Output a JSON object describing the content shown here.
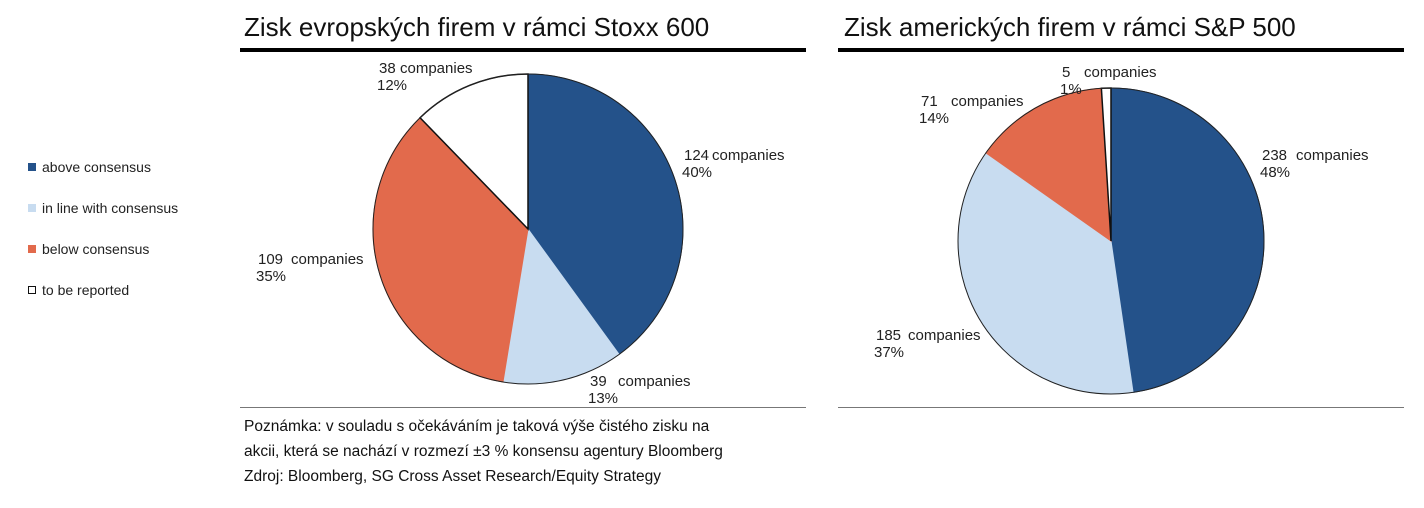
{
  "colors": {
    "above": "#24528a",
    "inline": "#c8dcf0",
    "below": "#e26a4c",
    "reported": "#ffffff"
  },
  "legend": [
    {
      "key": "above",
      "label": "above consensus"
    },
    {
      "key": "inline",
      "label": "in line with consensus"
    },
    {
      "key": "below",
      "label": "below consensus"
    },
    {
      "key": "reported",
      "label": "to be reported"
    }
  ],
  "chart_data": [
    {
      "type": "pie",
      "title": "Zisk evropských firem v rámci Stoxx 600",
      "slices": [
        {
          "key": "above",
          "value": 124,
          "count": "124",
          "unit": "companies",
          "pct": "40%"
        },
        {
          "key": "inline",
          "value": 39,
          "count": "39",
          "unit": "companies",
          "pct": "13%"
        },
        {
          "key": "below",
          "value": 109,
          "count": "109",
          "unit": "companies",
          "pct": "35%"
        },
        {
          "key": "reported",
          "value": 38,
          "count": "38",
          "unit": "companies",
          "pct": "12%"
        }
      ]
    },
    {
      "type": "pie",
      "title": "Zisk amerických firem v rámci S&P 500",
      "slices": [
        {
          "key": "above",
          "value": 238,
          "count": "238",
          "unit": "companies",
          "pct": "48%"
        },
        {
          "key": "inline",
          "value": 185,
          "count": "185",
          "unit": "companies",
          "pct": "37%"
        },
        {
          "key": "below",
          "value": 71,
          "count": "71",
          "unit": "companies",
          "pct": "14%"
        },
        {
          "key": "reported",
          "value": 5,
          "count": "5",
          "unit": "companies",
          "pct": "1%"
        }
      ]
    }
  ],
  "note": {
    "line1": "Poznámka: v souladu s očekáváním je taková výše čistého zisku na",
    "line2": "akcii, která se nachází v rozmezí ±3 % konsensu agentury Bloomberg",
    "line3": "Zdroj: Bloomberg, SG Cross Asset Research/Equity Strategy"
  }
}
